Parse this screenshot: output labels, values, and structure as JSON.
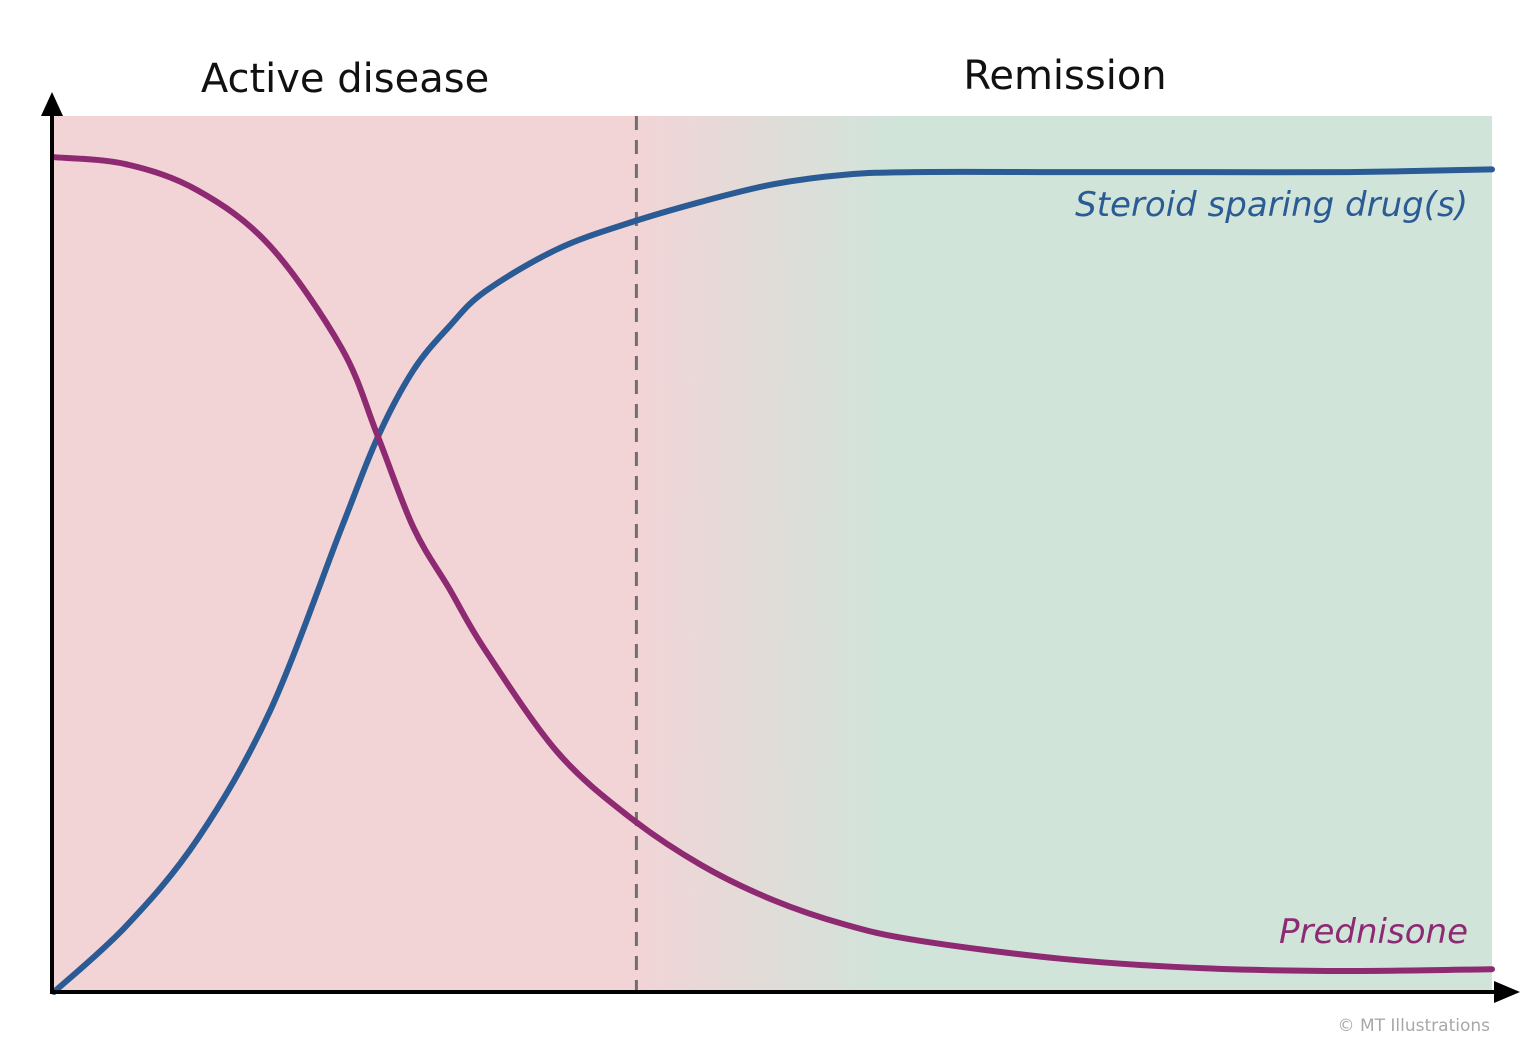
{
  "chart_data": {
    "type": "line",
    "title": "",
    "xlabel": "",
    "ylabel": "",
    "xlim": [
      0,
      100
    ],
    "ylim": [
      0,
      100
    ],
    "grid": false,
    "phases": [
      {
        "label": "Active disease",
        "x_start": 0,
        "x_end": 40.5,
        "color": "#f2d4d7"
      },
      {
        "label": "Remission",
        "x_start": 40.5,
        "x_end": 100,
        "color": "#d0e4da"
      }
    ],
    "phase_boundary": 40.5,
    "series": [
      {
        "name": "Steroid sparing drug(s)",
        "color": "#2b5b94",
        "x": [
          0,
          5,
          10,
          15,
          20,
          22.5,
          25,
          27.5,
          30,
          35,
          40,
          45,
          50,
          55,
          60,
          70,
          80,
          90,
          100
        ],
        "y": [
          0,
          7.5,
          17.5,
          32,
          53,
          63.3,
          71,
          76,
          80,
          84.8,
          87.8,
          90.2,
          92.2,
          93.3,
          93.6,
          93.6,
          93.6,
          93.6,
          93.9
        ]
      },
      {
        "name": "Prednisone",
        "color": "#8e2a72",
        "x": [
          0,
          5,
          10,
          15,
          20,
          22.5,
          25,
          27.5,
          30,
          35,
          40,
          45,
          50,
          55,
          60,
          70,
          80,
          90,
          100
        ],
        "y": [
          95.3,
          94.5,
          91.5,
          85.2,
          73.5,
          63.5,
          53,
          46,
          39,
          27.4,
          20,
          14.5,
          10.5,
          7.7,
          5.9,
          3.8,
          2.7,
          2.4,
          2.6
        ]
      }
    ],
    "credit": "© MT Illustrations"
  }
}
